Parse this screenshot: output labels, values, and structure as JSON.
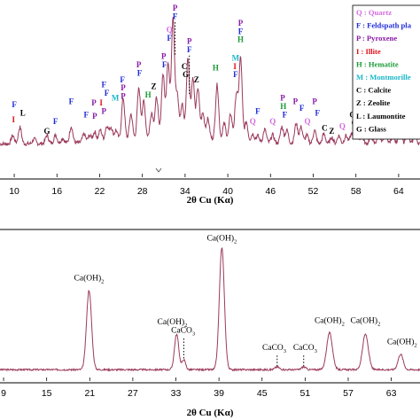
{
  "colors": {
    "trace": "#9b3a5d",
    "Q": "#d46be0",
    "F": "#1f2bd8",
    "P": "#8a1aa6",
    "I": "#e0101a",
    "H": "#1a9a35",
    "M": "#19b7c9",
    "C": "#000000",
    "Z": "#000000",
    "L": "#000000",
    "G": "#000000"
  },
  "chart_data": [
    {
      "type": "line",
      "xlabel": "2θ Cu (Kα)",
      "xlim": [
        8,
        67
      ],
      "ylim": [
        0,
        1
      ],
      "x_ticks": [
        "10",
        "16",
        "22",
        "28",
        "34",
        "40",
        "46",
        "52",
        "58",
        "64"
      ],
      "baseline": 0.2,
      "peaks": [
        {
          "x": 9.8,
          "h": 0.05
        },
        {
          "x": 10.8,
          "h": 0.1
        },
        {
          "x": 12.8,
          "h": 0.03
        },
        {
          "x": 14.6,
          "h": 0.05
        },
        {
          "x": 15.8,
          "h": 0.05
        },
        {
          "x": 16.8,
          "h": 0.03
        },
        {
          "x": 18.0,
          "h": 0.1
        },
        {
          "x": 19.8,
          "h": 0.05
        },
        {
          "x": 20.6,
          "h": 0.04
        },
        {
          "x": 21.3,
          "h": 0.06
        },
        {
          "x": 22.1,
          "h": 0.07
        },
        {
          "x": 23.0,
          "h": 0.09
        },
        {
          "x": 23.6,
          "h": 0.08
        },
        {
          "x": 24.3,
          "h": 0.06
        },
        {
          "x": 25.3,
          "h": 0.25
        },
        {
          "x": 26.4,
          "h": 0.15
        },
        {
          "x": 27.5,
          "h": 0.3
        },
        {
          "x": 28.2,
          "h": 0.22
        },
        {
          "x": 29.3,
          "h": 0.15
        },
        {
          "x": 30.0,
          "h": 0.24
        },
        {
          "x": 30.9,
          "h": 0.38
        },
        {
          "x": 31.6,
          "h": 0.45
        },
        {
          "x": 32.3,
          "h": 0.72
        },
        {
          "x": 32.9,
          "h": 0.25
        },
        {
          "x": 33.6,
          "h": 0.2
        },
        {
          "x": 34.4,
          "h": 0.48
        },
        {
          "x": 35.1,
          "h": 0.36
        },
        {
          "x": 35.8,
          "h": 0.3
        },
        {
          "x": 36.5,
          "h": 0.15
        },
        {
          "x": 37.2,
          "h": 0.12
        },
        {
          "x": 38.5,
          "h": 0.33
        },
        {
          "x": 39.5,
          "h": 0.1
        },
        {
          "x": 40.4,
          "h": 0.16
        },
        {
          "x": 41.2,
          "h": 0.28
        },
        {
          "x": 41.8,
          "h": 0.5
        },
        {
          "x": 42.6,
          "h": 0.12
        },
        {
          "x": 43.5,
          "h": 0.05
        },
        {
          "x": 44.2,
          "h": 0.04
        },
        {
          "x": 45.2,
          "h": 0.08
        },
        {
          "x": 46.3,
          "h": 0.05
        },
        {
          "x": 47.6,
          "h": 0.1
        },
        {
          "x": 48.3,
          "h": 0.08
        },
        {
          "x": 49.6,
          "h": 0.12
        },
        {
          "x": 50.3,
          "h": 0.1
        },
        {
          "x": 51.1,
          "h": 0.05
        },
        {
          "x": 52.2,
          "h": 0.08
        },
        {
          "x": 53.5,
          "h": 0.06
        },
        {
          "x": 54.6,
          "h": 0.04
        },
        {
          "x": 55.6,
          "h": 0.05
        },
        {
          "x": 56.6,
          "h": 0.05
        },
        {
          "x": 57.4,
          "h": 0.06
        },
        {
          "x": 58.0,
          "h": 0.08
        },
        {
          "x": 58.8,
          "h": 0.06
        },
        {
          "x": 60.1,
          "h": 0.05
        },
        {
          "x": 61.2,
          "h": 0.06
        },
        {
          "x": 62.2,
          "h": 0.07
        },
        {
          "x": 63.2,
          "h": 0.05
        },
        {
          "x": 64.2,
          "h": 0.1
        },
        {
          "x": 65.2,
          "h": 0.08
        },
        {
          "x": 66.3,
          "h": 0.06
        }
      ],
      "annotations": [
        {
          "t": "F",
          "x": 10.0,
          "y": 0.42
        },
        {
          "t": "I",
          "x": 9.9,
          "y": 0.33
        },
        {
          "t": "L",
          "x": 11.2,
          "y": 0.37
        },
        {
          "t": "G",
          "x": 14.6,
          "y": 0.26
        },
        {
          "t": "F",
          "x": 15.8,
          "y": 0.32
        },
        {
          "t": "F",
          "x": 18.0,
          "y": 0.44
        },
        {
          "t": "F",
          "x": 20.1,
          "y": 0.36
        },
        {
          "t": "P",
          "x": 21.2,
          "y": 0.43
        },
        {
          "t": "P",
          "x": 21.3,
          "y": 0.35
        },
        {
          "t": "I",
          "x": 22.2,
          "y": 0.43
        },
        {
          "t": "F",
          "x": 22.6,
          "y": 0.54
        },
        {
          "t": "F",
          "x": 23.0,
          "y": 0.49
        },
        {
          "t": "P",
          "x": 22.6,
          "y": 0.38
        },
        {
          "t": "M",
          "x": 24.2,
          "y": 0.46
        },
        {
          "t": "F",
          "x": 25.2,
          "y": 0.57
        },
        {
          "t": "P",
          "x": 25.3,
          "y": 0.52
        },
        {
          "t": "P",
          "x": 25.3,
          "y": 0.47
        },
        {
          "t": "P",
          "x": 27.5,
          "y": 0.66
        },
        {
          "t": "F",
          "x": 27.6,
          "y": 0.61
        },
        {
          "t": "H",
          "x": 28.8,
          "y": 0.48
        },
        {
          "t": "Z",
          "x": 29.6,
          "y": 0.53
        },
        {
          "t": "P",
          "x": 31.0,
          "y": 0.71
        },
        {
          "t": "F",
          "x": 31.1,
          "y": 0.66
        },
        {
          "t": "Q",
          "x": 31.8,
          "y": 0.87
        },
        {
          "t": "F",
          "x": 31.8,
          "y": 0.82
        },
        {
          "t": "P",
          "x": 32.6,
          "y": 1.0
        },
        {
          "t": "F",
          "x": 32.6,
          "y": 0.95
        },
        {
          "t": "P",
          "x": 34.6,
          "y": 0.8
        },
        {
          "t": "F",
          "x": 34.6,
          "y": 0.75
        },
        {
          "t": "C",
          "x": 33.9,
          "y": 0.65
        },
        {
          "t": "G",
          "x": 34.1,
          "y": 0.6
        },
        {
          "t": "Z",
          "x": 35.6,
          "y": 0.57
        },
        {
          "t": "H",
          "x": 38.3,
          "y": 0.64
        },
        {
          "t": "P",
          "x": 41.8,
          "y": 0.91
        },
        {
          "t": "F",
          "x": 41.8,
          "y": 0.86
        },
        {
          "t": "H",
          "x": 41.8,
          "y": 0.81
        },
        {
          "t": "M",
          "x": 41.1,
          "y": 0.7
        },
        {
          "t": "I",
          "x": 41.0,
          "y": 0.65
        },
        {
          "t": "F",
          "x": 41.1,
          "y": 0.6
        },
        {
          "t": "Q",
          "x": 43.5,
          "y": 0.32
        },
        {
          "t": "F",
          "x": 44.2,
          "y": 0.38
        },
        {
          "t": "Q",
          "x": 46.3,
          "y": 0.32
        },
        {
          "t": "P",
          "x": 47.7,
          "y": 0.46
        },
        {
          "t": "H",
          "x": 47.8,
          "y": 0.41
        },
        {
          "t": "F",
          "x": 48.0,
          "y": 0.36
        },
        {
          "t": "P",
          "x": 49.5,
          "y": 0.44
        },
        {
          "t": "F",
          "x": 50.4,
          "y": 0.4
        },
        {
          "t": "Q",
          "x": 51.2,
          "y": 0.32
        },
        {
          "t": "P",
          "x": 52.2,
          "y": 0.44
        },
        {
          "t": "F",
          "x": 52.6,
          "y": 0.37
        },
        {
          "t": "C",
          "x": 53.6,
          "y": 0.28
        },
        {
          "t": "Z",
          "x": 54.6,
          "y": 0.26
        },
        {
          "t": "Q",
          "x": 56.1,
          "y": 0.29
        },
        {
          "t": "C",
          "x": 57.5,
          "y": 0.36
        },
        {
          "t": "G",
          "x": 57.8,
          "y": 0.31
        },
        {
          "t": "C",
          "x": 58.6,
          "y": 0.37
        },
        {
          "t": "F",
          "x": 60.2,
          "y": 0.34
        },
        {
          "t": "F",
          "x": 61.3,
          "y": 0.38
        },
        {
          "t": "H",
          "x": 62.6,
          "y": 0.41
        },
        {
          "t": "F",
          "x": 64.1,
          "y": 0.44
        },
        {
          "t": "P",
          "x": 64.9,
          "y": 0.42
        },
        {
          "t": "F",
          "x": 66.0,
          "y": 0.35
        }
      ],
      "dotted_lines": [
        {
          "x": 32.6,
          "from": 0.93,
          "to": 0.73
        },
        {
          "x": 34.6,
          "from": 0.73,
          "to": 0.5
        }
      ],
      "legend": {
        "placement": "top-right",
        "entries": [
          {
            "code": "Q",
            "text": "Q : Quartz"
          },
          {
            "code": "F",
            "text": "F : Feldspath pla"
          },
          {
            "code": "P",
            "text": "P : Pyroxene"
          },
          {
            "code": "I",
            "text": "I : Illite"
          },
          {
            "code": "H",
            "text": "H : Hematite"
          },
          {
            "code": "M",
            "text": "M : Montmorille"
          },
          {
            "code": "C",
            "text": "C : Calcite"
          },
          {
            "code": "Z",
            "text": "Z : Zeolite"
          },
          {
            "code": "L",
            "text": "L : Laumontite"
          },
          {
            "code": "G",
            "text": "G : Glass"
          }
        ]
      }
    },
    {
      "type": "line",
      "xlabel": "2θ Cu (Kα)",
      "xlim": [
        8.5,
        67
      ],
      "ylim": [
        0,
        1
      ],
      "x_ticks": [
        "9",
        "15",
        "21",
        "27",
        "33",
        "39",
        "45",
        "51",
        "57",
        "63"
      ],
      "baseline": 0.08,
      "peaks": [
        {
          "x": 20.9,
          "h": 0.56,
          "w": 0.35
        },
        {
          "x": 33.1,
          "h": 0.25,
          "w": 0.3
        },
        {
          "x": 34.1,
          "h": 0.07,
          "w": 0.25
        },
        {
          "x": 39.4,
          "h": 0.86,
          "w": 0.35
        },
        {
          "x": 47.1,
          "h": 0.02,
          "w": 0.3
        },
        {
          "x": 50.8,
          "h": 0.02,
          "w": 0.3
        },
        {
          "x": 54.4,
          "h": 0.26,
          "w": 0.4
        },
        {
          "x": 59.4,
          "h": 0.25,
          "w": 0.4
        },
        {
          "x": 64.3,
          "h": 0.11,
          "w": 0.35
        }
      ],
      "annotations": [
        {
          "t": "Ca(OH)",
          "sub": "2",
          "x": 20.9,
          "y": 0.71
        },
        {
          "t": "Ca(OH)",
          "sub": "2",
          "x": 32.5,
          "y": 0.4
        },
        {
          "t": "CaCO",
          "sub": "3",
          "x": 34.0,
          "y": 0.34
        },
        {
          "t": "Ca(OH)",
          "sub": "2",
          "x": 39.4,
          "y": 0.99
        },
        {
          "t": "CaCO",
          "sub": "3",
          "x": 46.7,
          "y": 0.22
        },
        {
          "t": "CaCO",
          "sub": "3",
          "x": 51.0,
          "y": 0.22
        },
        {
          "t": "Ca(OH)",
          "sub": "2",
          "x": 54.4,
          "y": 0.41
        },
        {
          "t": "Ca(OH)",
          "sub": "2",
          "x": 59.4,
          "y": 0.41
        },
        {
          "t": "Ca(OH)",
          "sub": "2",
          "x": 64.5,
          "y": 0.26
        }
      ],
      "dotted_lines": [
        {
          "x": 34.1,
          "from": 0.3,
          "to": 0.15
        },
        {
          "x": 47.1,
          "from": 0.18,
          "to": 0.1
        },
        {
          "x": 50.8,
          "from": 0.18,
          "to": 0.1
        }
      ]
    }
  ]
}
